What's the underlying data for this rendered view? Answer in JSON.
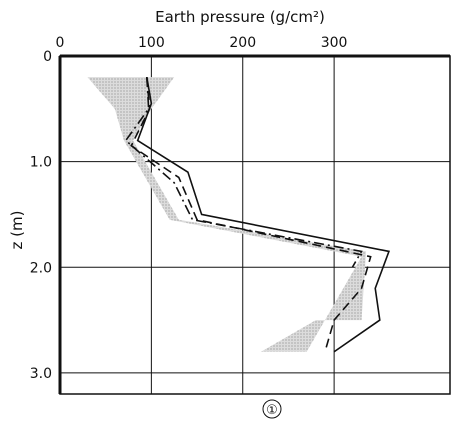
{
  "chart_data": {
    "type": "line",
    "title": "",
    "xlabel": "Earth pressure (g/cm²)",
    "ylabel": "z (m)",
    "x_axis_position": "top",
    "y_inverted": true,
    "xlim": [
      0,
      350
    ],
    "ylim": [
      0,
      3.2
    ],
    "grid": true,
    "x_ticks": [
      0,
      100,
      200,
      300
    ],
    "x_tick_labels": [
      "0",
      "100",
      "200",
      "300"
    ],
    "y_ticks": [
      0,
      1.0,
      2.0,
      3.0
    ],
    "y_tick_labels": [
      "0",
      "1.0",
      "2.0",
      "3.0"
    ],
    "panel_label": "①",
    "shaded_band": {
      "left": [
        [
          30,
          0.2
        ],
        [
          60,
          0.5
        ],
        [
          70,
          0.8
        ],
        [
          120,
          1.55
        ],
        [
          330,
          1.9
        ],
        [
          270,
          2.8
        ],
        [
          220,
          2.8
        ]
      ],
      "right": [
        [
          125,
          0.2
        ],
        [
          100,
          0.5
        ],
        [
          80,
          0.8
        ],
        [
          130,
          1.55
        ],
        [
          335,
          1.85
        ],
        [
          330,
          2.5
        ],
        [
          280,
          2.5
        ]
      ]
    },
    "series": [
      {
        "style": "solid",
        "values": [
          [
            95,
            0.2
          ],
          [
            100,
            0.45
          ],
          [
            85,
            0.8
          ],
          [
            140,
            1.1
          ],
          [
            155,
            1.5
          ],
          [
            360,
            1.85
          ],
          [
            345,
            2.2
          ],
          [
            350,
            2.5
          ],
          [
            300,
            2.8
          ]
        ]
      },
      {
        "style": "dashed",
        "values": [
          [
            95,
            0.2
          ],
          [
            98,
            0.5
          ],
          [
            78,
            0.85
          ],
          [
            130,
            1.15
          ],
          [
            150,
            1.55
          ],
          [
            340,
            1.9
          ],
          [
            330,
            2.2
          ],
          [
            300,
            2.5
          ],
          [
            290,
            2.8
          ]
        ]
      },
      {
        "style": "dashdot",
        "values": [
          [
            95,
            0.2
          ],
          [
            97,
            0.5
          ],
          [
            72,
            0.8
          ],
          [
            125,
            1.2
          ],
          [
            145,
            1.55
          ],
          [
            330,
            1.85
          ],
          [
            320,
            2.0
          ]
        ]
      }
    ]
  }
}
